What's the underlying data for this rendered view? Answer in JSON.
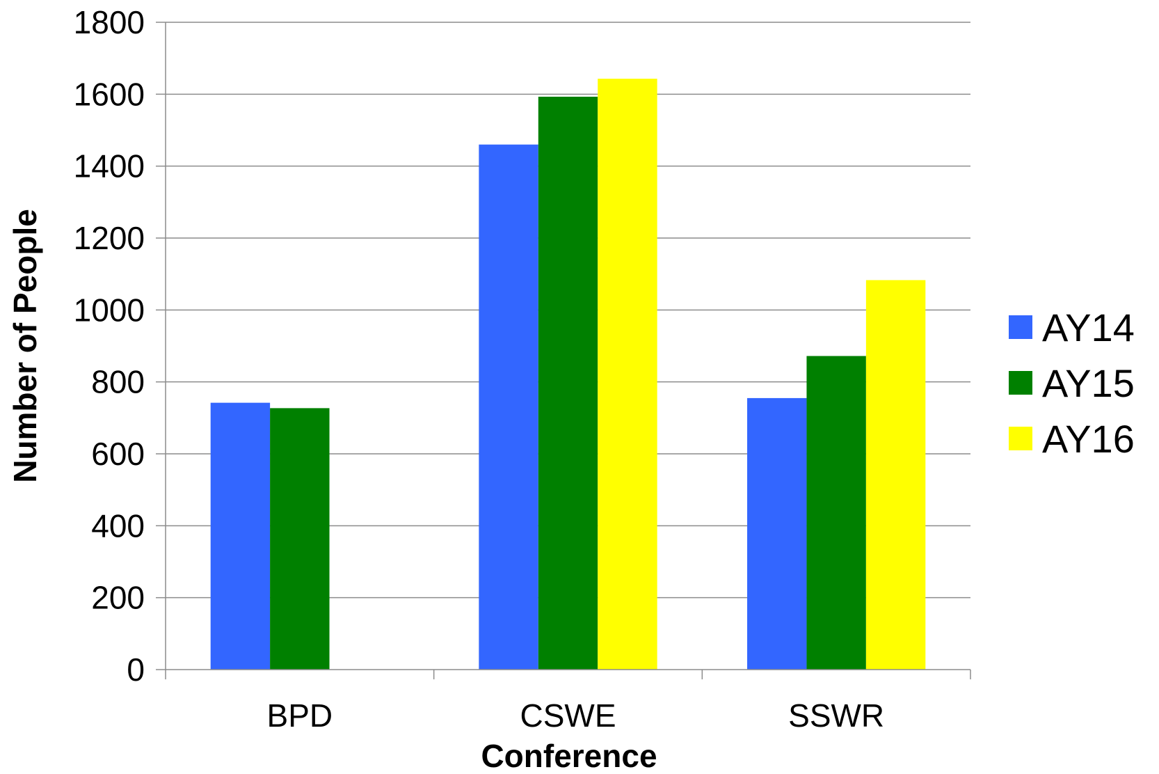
{
  "chart_data": {
    "type": "bar",
    "title": "",
    "xlabel": "Conference",
    "ylabel": "Number of People",
    "categories": [
      "BPD",
      "CSWE",
      "SSWR"
    ],
    "series": [
      {
        "name": "AY14",
        "color": "#3366ff",
        "values": [
          742,
          1460,
          755
        ]
      },
      {
        "name": "AY15",
        "color": "#008000",
        "values": [
          727,
          1593,
          872
        ]
      },
      {
        "name": "AY16",
        "color": "#ffff00",
        "values": [
          null,
          1643,
          1083
        ]
      }
    ],
    "ylim": [
      0,
      1800
    ],
    "yticks": [
      0,
      200,
      400,
      600,
      800,
      1000,
      1200,
      1400,
      1600,
      1800
    ],
    "grid": true,
    "legend_position": "right"
  }
}
